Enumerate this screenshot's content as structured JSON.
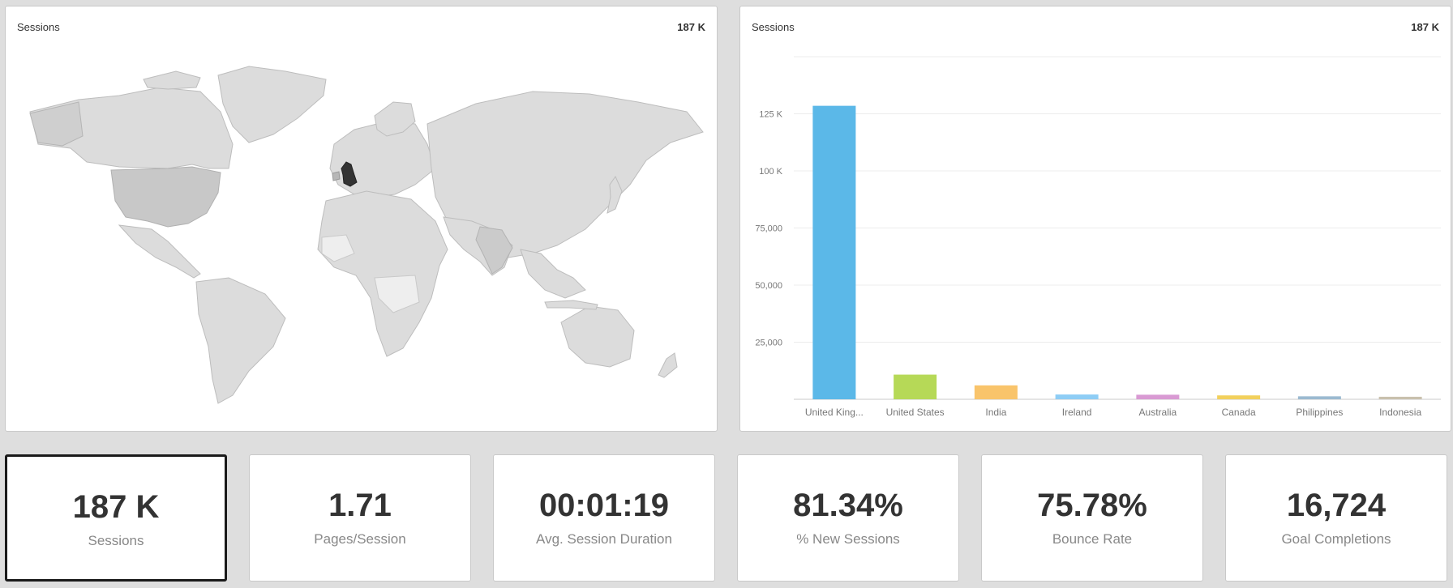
{
  "map_panel": {
    "title": "Sessions",
    "total": "187 K"
  },
  "bar_panel": {
    "title": "Sessions",
    "total": "187 K"
  },
  "chart_data": {
    "type": "bar",
    "categories": [
      "United King...",
      "United States",
      "India",
      "Ireland",
      "Australia",
      "Canada",
      "Philippines",
      "Indonesia"
    ],
    "values": [
      128500,
      10800,
      6100,
      2100,
      2000,
      1700,
      1300,
      1100
    ],
    "colors": [
      "#5bb8e8",
      "#b6d957",
      "#f9c46b",
      "#8ecdf5",
      "#d99ad3",
      "#f2d05c",
      "#9bbad0",
      "#c9c0ad"
    ],
    "y_ticks": [
      25000,
      50000,
      75000,
      100000,
      125000
    ],
    "y_tick_labels": [
      "25,000",
      "50,000",
      "75,000",
      "100 K",
      "125 K"
    ],
    "ylim": [
      0,
      150000
    ],
    "grid": true
  },
  "kpis": [
    {
      "value": "187 K",
      "label": "Sessions",
      "selected": true
    },
    {
      "value": "1.71",
      "label": "Pages/Session"
    },
    {
      "value": "00:01:19",
      "label": "Avg. Session Duration"
    },
    {
      "value": "81.34%",
      "label": "% New Sessions"
    },
    {
      "value": "75.78%",
      "label": "Bounce Rate"
    },
    {
      "value": "16,724",
      "label": "Goal Completions"
    }
  ]
}
